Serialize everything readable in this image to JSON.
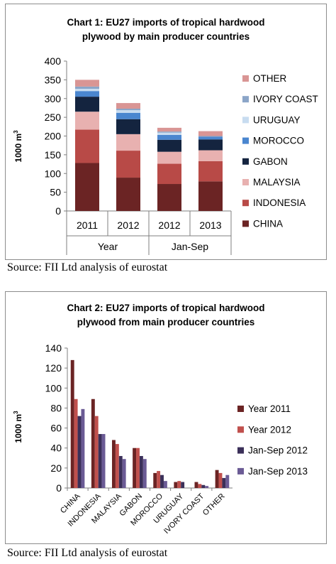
{
  "charts": {
    "chart1": {
      "title_line1": "Chart 1: EU27 imports of tropical hardwood",
      "title_line2": "plywood by main producer countries",
      "ylabel": "1000 m",
      "ylabel_sup": "3",
      "source": "Source: FII Ltd analysis of eurostat"
    },
    "chart2": {
      "title_line1": "Chart 2: EU27 imports of tropical hardwood",
      "title_line2": "plywood from main producer countries",
      "ylabel": "1000 m",
      "ylabel_sup": "3",
      "source": "Source: FII Ltd analysis of eurostat"
    }
  },
  "chart_data": [
    {
      "type": "bar",
      "stacked": true,
      "title": "Chart 1: EU27 imports of tropical hardwood plywood by main producer countries",
      "ylabel": "1000 m3",
      "ylim": [
        0,
        400
      ],
      "yticks": [
        0,
        50,
        100,
        150,
        200,
        250,
        300,
        350,
        400
      ],
      "categories": [
        "2011",
        "2012",
        "2012",
        "2013"
      ],
      "groups": [
        {
          "label": "Year",
          "span": [
            0,
            1
          ]
        },
        {
          "label": "Jan-Sep",
          "span": [
            2,
            3
          ]
        }
      ],
      "legend_placement": "right",
      "series": [
        {
          "name": "CHINA",
          "color": "#6b2424",
          "values": [
            128,
            89,
            72,
            79
          ]
        },
        {
          "name": "INDONESIA",
          "color": "#b84a47",
          "values": [
            89,
            72,
            54,
            54
          ]
        },
        {
          "name": "MALAYSIA",
          "color": "#e8b1b0",
          "values": [
            48,
            44,
            32,
            29
          ]
        },
        {
          "name": "GABON",
          "color": "#14243f",
          "values": [
            40,
            40,
            32,
            29
          ]
        },
        {
          "name": "MOROCCO",
          "color": "#4a86cf",
          "values": [
            15,
            17,
            13,
            7
          ]
        },
        {
          "name": "URUGUAY",
          "color": "#c8dcf0",
          "values": [
            6,
            7,
            6,
            0
          ]
        },
        {
          "name": "IVORY COAST",
          "color": "#8ba5c8",
          "values": [
            6,
            4,
            3,
            2
          ]
        },
        {
          "name": "OTHER",
          "color": "#d99594",
          "values": [
            18,
            15,
            10,
            13
          ]
        }
      ]
    },
    {
      "type": "bar",
      "title": "Chart 2: EU27 imports of tropical hardwood plywood from main producer countries",
      "ylabel": "1000 m3",
      "ylim": [
        0,
        140
      ],
      "yticks": [
        0,
        20,
        40,
        60,
        80,
        100,
        120,
        140
      ],
      "categories": [
        "CHINA",
        "INDONESIA",
        "MALAYSIA",
        "GABON",
        "MOROCCO",
        "URUGUAY",
        "IVORY COAST",
        "OTHER"
      ],
      "legend_placement": "right",
      "series": [
        {
          "name": "Year 2011",
          "color": "#6b2424",
          "values": [
            128,
            89,
            48,
            40,
            15,
            6,
            6,
            18
          ]
        },
        {
          "name": "Year 2012",
          "color": "#c0504d",
          "values": [
            89,
            72,
            44,
            40,
            17,
            7,
            4,
            15
          ]
        },
        {
          "name": "Jan-Sep 2012",
          "color": "#3b3059",
          "values": [
            72,
            54,
            32,
            32,
            13,
            6,
            3,
            10
          ]
        },
        {
          "name": "Jan-Sep 2013",
          "color": "#6b5b95",
          "values": [
            79,
            54,
            29,
            29,
            7,
            0,
            2,
            13
          ]
        }
      ]
    }
  ]
}
